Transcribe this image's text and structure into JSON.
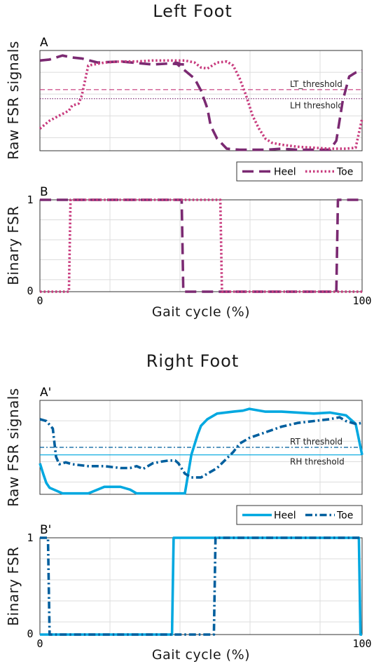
{
  "chart_data": [
    {
      "type": "line",
      "panel": "A",
      "title": "Left Foot",
      "ylabel": "Raw FSR signals",
      "xlim": [
        0,
        100
      ],
      "grid": true,
      "legend": "bottom-right, outside below axes",
      "thresholds": [
        {
          "label": "LT_threshold",
          "y": 0.61,
          "series": "Toe"
        },
        {
          "label": "LH threshold",
          "y": 0.52,
          "series": "Heel"
        }
      ],
      "series": [
        {
          "name": "Heel",
          "color": "#7b2a72",
          "dash": "dash",
          "x": [
            0,
            3,
            7,
            10,
            13,
            18,
            25,
            35,
            40,
            45,
            42,
            48,
            50,
            52,
            53,
            55,
            58,
            62,
            70,
            75,
            80,
            90,
            92,
            94,
            96,
            98,
            100
          ],
          "y": [
            0.9,
            0.91,
            0.95,
            0.93,
            0.92,
            0.88,
            0.89,
            0.86,
            0.87,
            0.86,
            0.88,
            0.72,
            0.6,
            0.42,
            0.25,
            0.12,
            0.02,
            0.01,
            0.01,
            0.02,
            0.01,
            0.01,
            0.1,
            0.5,
            0.74,
            0.78,
            0.8
          ]
        },
        {
          "name": "Toe",
          "color": "#c83b7e",
          "dash": "dot",
          "x": [
            0,
            3,
            6,
            9,
            10,
            12,
            13,
            15,
            20,
            25,
            30,
            35,
            40,
            45,
            48,
            50,
            52,
            55,
            58,
            60,
            62,
            64,
            66,
            68,
            70,
            72,
            75,
            80,
            85,
            90,
            95,
            98,
            100
          ],
          "y": [
            0.22,
            0.3,
            0.35,
            0.4,
            0.45,
            0.47,
            0.55,
            0.85,
            0.88,
            0.89,
            0.89,
            0.9,
            0.9,
            0.9,
            0.88,
            0.83,
            0.82,
            0.88,
            0.89,
            0.85,
            0.72,
            0.55,
            0.35,
            0.22,
            0.12,
            0.08,
            0.06,
            0.04,
            0.03,
            0.02,
            0.02,
            0.03,
            0.32
          ]
        }
      ]
    },
    {
      "type": "line",
      "panel": "B",
      "ylabel": "Binary FSR",
      "xlabel": "Gait cycle (%)",
      "xlim": [
        0,
        100
      ],
      "ylim": [
        0,
        1
      ],
      "xticks": [
        "0",
        "100"
      ],
      "yticks": [
        "0",
        "1"
      ],
      "grid": true,
      "series": [
        {
          "name": "Heel",
          "color": "#7b2a72",
          "dash": "dash",
          "x": [
            0,
            44,
            44.5,
            92,
            92.5,
            100
          ],
          "y": [
            1,
            1,
            0,
            0,
            1,
            1
          ]
        },
        {
          "name": "Toe",
          "color": "#c83b7e",
          "dash": "dot",
          "x": [
            0,
            9,
            9.5,
            56,
            56.5,
            100
          ],
          "y": [
            0,
            0,
            1,
            1,
            0,
            0
          ]
        }
      ]
    },
    {
      "type": "line",
      "panel": "A'",
      "title": "Right Foot",
      "ylabel": "Raw FSR signals",
      "xlim": [
        0,
        100
      ],
      "grid": true,
      "legend": "bottom-right, outside below axes",
      "thresholds": [
        {
          "label": "RT threshold",
          "y": 0.5,
          "series": "Toe"
        },
        {
          "label": "RH threshold",
          "y": 0.42,
          "series": "Heel"
        }
      ],
      "series": [
        {
          "name": "Heel",
          "color": "#00a8e0",
          "dash": "solid",
          "x": [
            0,
            1,
            2,
            3,
            5,
            7,
            10,
            15,
            20,
            22,
            25,
            28,
            30,
            35,
            40,
            43,
            45,
            47,
            49,
            50,
            52,
            55,
            60,
            63,
            65,
            70,
            75,
            80,
            85,
            90,
            95,
            98,
            100
          ],
          "y": [
            0.33,
            0.22,
            0.12,
            0.07,
            0.04,
            0.01,
            0.01,
            0.01,
            0.08,
            0.08,
            0.08,
            0.05,
            0.01,
            0.01,
            0.01,
            0.01,
            0.01,
            0.42,
            0.64,
            0.73,
            0.8,
            0.86,
            0.88,
            0.89,
            0.91,
            0.88,
            0.88,
            0.87,
            0.86,
            0.87,
            0.84,
            0.75,
            0.42
          ]
        },
        {
          "name": "Toe",
          "color": "#005f9e",
          "dash": "dashdot",
          "x": [
            0,
            2,
            4,
            5,
            6,
            8,
            10,
            15,
            20,
            25,
            28,
            30,
            32,
            35,
            38,
            40,
            42,
            43,
            45,
            47,
            50,
            55,
            60,
            62,
            65,
            70,
            75,
            80,
            85,
            90,
            93,
            95,
            98,
            100
          ],
          "y": [
            0.8,
            0.78,
            0.7,
            0.4,
            0.32,
            0.34,
            0.32,
            0.3,
            0.3,
            0.28,
            0.28,
            0.3,
            0.27,
            0.33,
            0.35,
            0.36,
            0.36,
            0.33,
            0.22,
            0.18,
            0.18,
            0.28,
            0.45,
            0.54,
            0.6,
            0.66,
            0.72,
            0.76,
            0.78,
            0.8,
            0.82,
            0.78,
            0.75,
            0.76
          ]
        }
      ]
    },
    {
      "type": "line",
      "panel": "B'",
      "ylabel": "Binary FSR",
      "xlabel": "Gait cycle (%)",
      "xlim": [
        0,
        100
      ],
      "ylim": [
        0,
        1
      ],
      "xticks": [
        "0",
        "100"
      ],
      "yticks": [
        "0",
        "1"
      ],
      "grid": true,
      "series": [
        {
          "name": "Heel",
          "color": "#00a8e0",
          "dash": "solid",
          "x": [
            0,
            41,
            41.5,
            99,
            99.5,
            100
          ],
          "y": [
            0,
            0,
            1,
            1,
            0,
            0
          ]
        },
        {
          "name": "Toe",
          "color": "#005f9e",
          "dash": "dashdot",
          "x": [
            0,
            2.5,
            3,
            54,
            54.5,
            100
          ],
          "y": [
            1,
            1,
            0,
            0,
            1,
            1
          ]
        }
      ]
    }
  ]
}
